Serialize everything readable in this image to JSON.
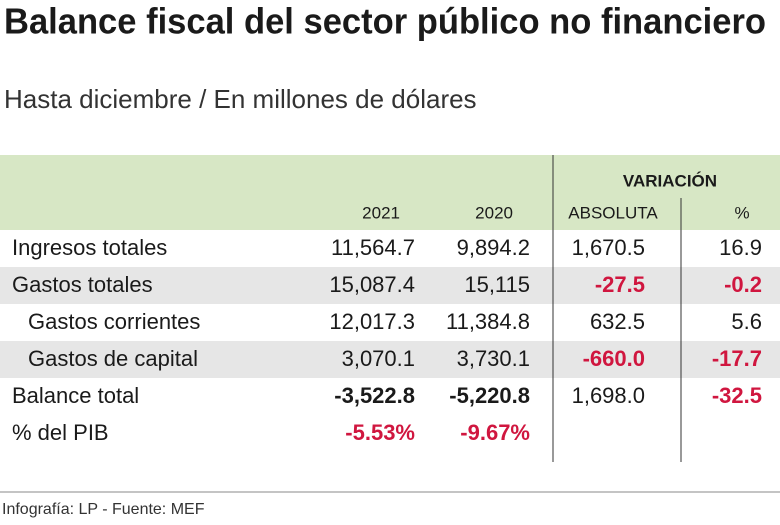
{
  "header": {
    "title": "Balance fiscal del sector público no financiero",
    "subtitle": "Hasta diciembre / En millones de dólares"
  },
  "table": {
    "group_header": "VARIACIÓN",
    "columns": [
      "2021",
      "2020",
      "ABSOLUTA",
      "%"
    ],
    "rows": [
      [
        "Ingresos totales",
        "11,564.7",
        "9,894.2",
        "1,670.5",
        "16.9"
      ],
      [
        "Gastos totales",
        "15,087.4",
        "15,115",
        "-27.5",
        "-0.2"
      ],
      [
        "Gastos corrientes",
        "12,017.3",
        "11,384.8",
        "632.5",
        "5.6"
      ],
      [
        "Gastos de capital",
        "3,070.1",
        "3,730.1",
        "-660.0",
        "-17.7"
      ],
      [
        "Balance total",
        "-3,522.8",
        "-5,220.8",
        "1,698.0",
        "-32.5"
      ],
      [
        "% del PIB",
        "-5.53%",
        "-9.67%"
      ]
    ]
  },
  "footer": {
    "source": "Infografía: LP - Fuente: MEF"
  }
}
